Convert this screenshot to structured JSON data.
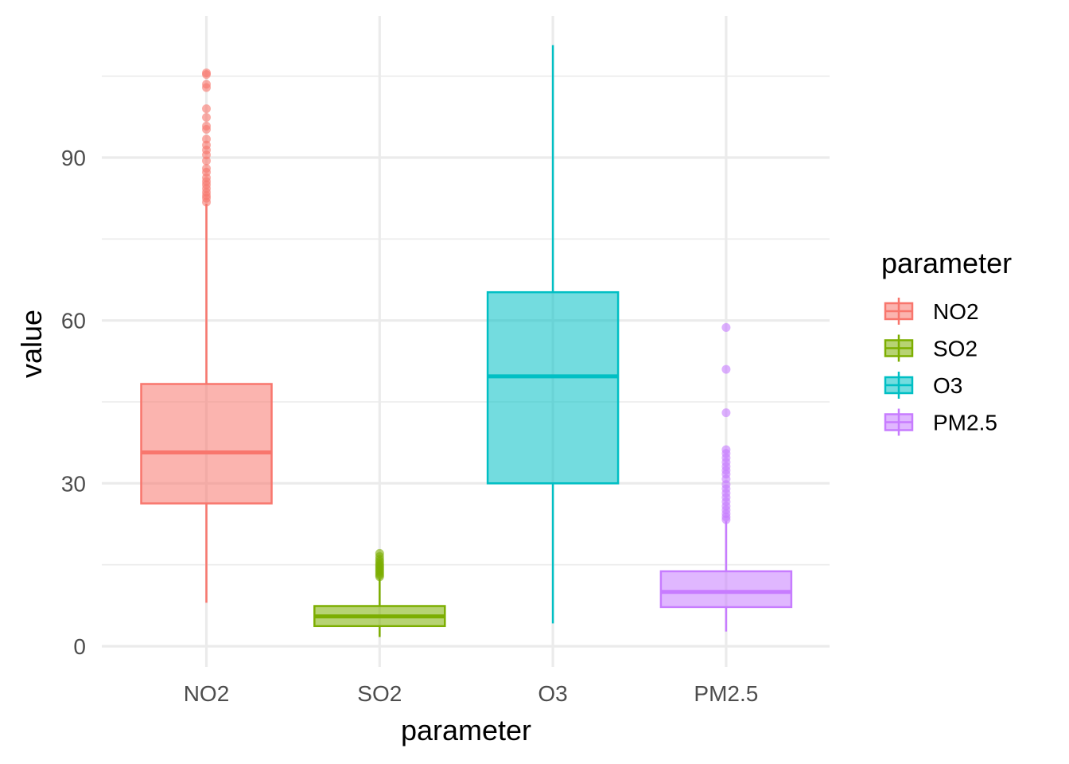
{
  "chart_data": {
    "type": "boxplot",
    "xlabel": "parameter",
    "ylabel": "value",
    "ylim": [
      -5,
      115
    ],
    "y_ticks": [
      0,
      30,
      60,
      90
    ],
    "y_minor_ticks": [
      15,
      45,
      75,
      105
    ],
    "grid": true,
    "legend": {
      "title": "parameter",
      "position": "right"
    },
    "categories": [
      "NO2",
      "SO2",
      "O3",
      "PM2.5"
    ],
    "series": [
      {
        "name": "NO2",
        "color": "#F8766D",
        "min": 8,
        "q1": 26.3,
        "median": 35.7,
        "q3": 48.3,
        "max": 81.5,
        "outliers": [
          81.8,
          82.5,
          83,
          83.6,
          84.3,
          85,
          85.6,
          86.3,
          87.3,
          88,
          89.4,
          90.5,
          91.4,
          92.3,
          93.4,
          95.2,
          95.8,
          97.4,
          99,
          102.9,
          103.5,
          105.3,
          105.6
        ]
      },
      {
        "name": "SO2",
        "color": "#7CAE00",
        "min": 1.7,
        "q1": 3.7,
        "median": 5.5,
        "q3": 7.4,
        "max": 12.5,
        "outliers": [
          12.8,
          13.1,
          13.4,
          13.7,
          14,
          14.3,
          14.6,
          14.9,
          15.2,
          15.6,
          16,
          16.5,
          17.1
        ]
      },
      {
        "name": "O3",
        "color": "#00BFC4",
        "min": 4.2,
        "q1": 30,
        "median": 49.7,
        "q3": 65.2,
        "max": 110.7,
        "outliers": []
      },
      {
        "name": "PM2.5",
        "color": "#C77CFF",
        "min": 2.7,
        "q1": 7.2,
        "median": 10,
        "q3": 13.8,
        "max": 23,
        "outliers": [
          23.3,
          23.8,
          24.4,
          25.1,
          25.8,
          26.6,
          27.4,
          28.2,
          29,
          29.8,
          30.8,
          31.7,
          32.4,
          33.1,
          33.9,
          34.7,
          35.5,
          36.2,
          43,
          51,
          58.7
        ]
      }
    ]
  }
}
